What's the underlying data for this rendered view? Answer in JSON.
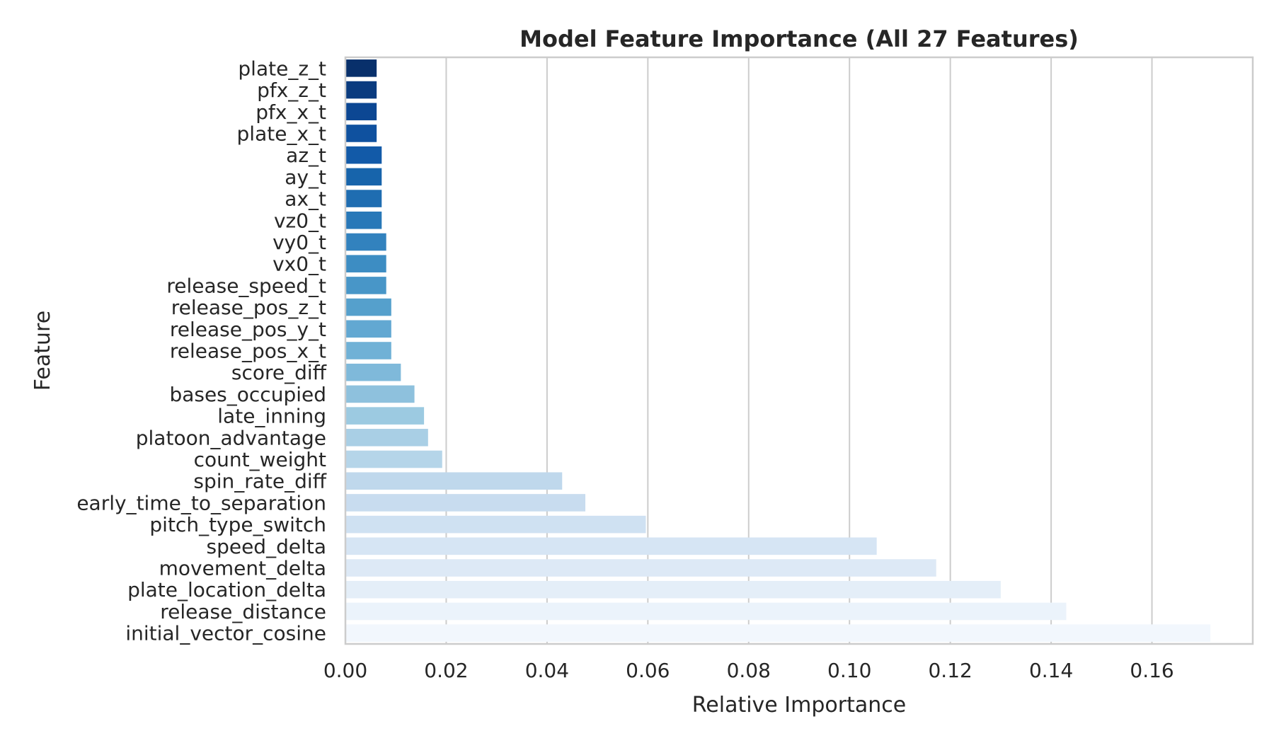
{
  "chart_data": {
    "type": "bar",
    "orientation": "horizontal",
    "title": "Model Feature Importance (All 27 Features)",
    "xlabel": "Relative Importance",
    "ylabel": "Feature",
    "xlim": [
      0,
      0.18
    ],
    "xticks": [
      0.0,
      0.02,
      0.04,
      0.06,
      0.08,
      0.1,
      0.12,
      0.14,
      0.16
    ],
    "xtick_labels": [
      "0.00",
      "0.02",
      "0.04",
      "0.06",
      "0.08",
      "0.10",
      "0.12",
      "0.14",
      "0.16"
    ],
    "grid": "vertical",
    "palette": "Blues (dark at top, light at bottom)",
    "categories": [
      "plate_z_t",
      "pfx_z_t",
      "pfx_x_t",
      "plate_x_t",
      "az_t",
      "ay_t",
      "ax_t",
      "vz0_t",
      "vy0_t",
      "vx0_t",
      "release_speed_t",
      "release_pos_z_t",
      "release_pos_y_t",
      "release_pos_x_t",
      "score_diff",
      "bases_occupied",
      "late_inning",
      "platoon_advantage",
      "count_weight",
      "spin_rate_diff",
      "early_time_to_separation",
      "pitch_type_switch",
      "speed_delta",
      "movement_delta",
      "plate_location_delta",
      "release_distance",
      "initial_vector_cosine"
    ],
    "values": [
      0.0062,
      0.0062,
      0.0062,
      0.0062,
      0.0072,
      0.0072,
      0.0072,
      0.0072,
      0.0081,
      0.0081,
      0.0081,
      0.0091,
      0.0091,
      0.0091,
      0.011,
      0.0137,
      0.0156,
      0.0164,
      0.0192,
      0.043,
      0.0476,
      0.0596,
      0.1054,
      0.1172,
      0.13,
      0.143,
      0.1716
    ],
    "colors": [
      "#08306b",
      "#0a3b7f",
      "#0c4793",
      "#0f519f",
      "#125aa8",
      "#1764ab",
      "#1f6db1",
      "#2878b8",
      "#3282be",
      "#3d8dc3",
      "#4896c8",
      "#55a0cc",
      "#62a8d2",
      "#70b1d6",
      "#7fb9da",
      "#8ec1dd",
      "#9ccae1",
      "#a9cfe5",
      "#b5d5e9",
      "#bfd8ec",
      "#c8dcef",
      "#cfe1f2",
      "#d6e5f4",
      "#dde9f6",
      "#e4eef8",
      "#ebf3fb",
      "#f2f7fd"
    ]
  }
}
